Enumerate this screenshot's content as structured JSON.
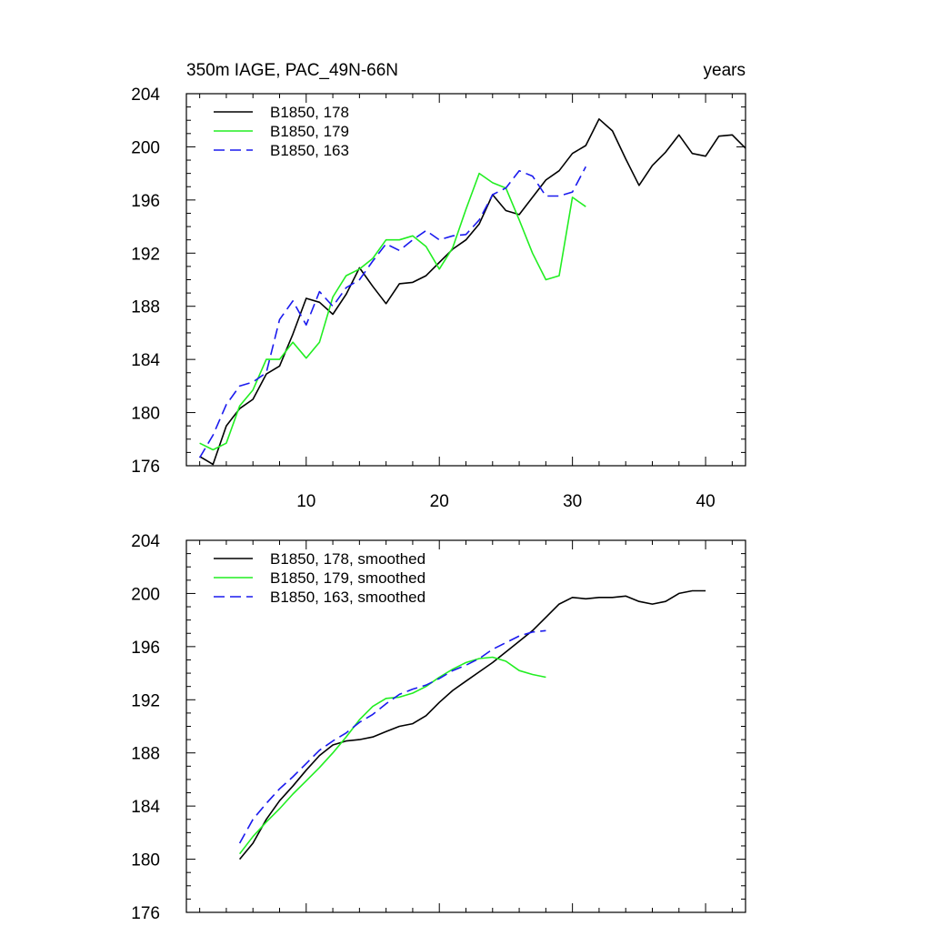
{
  "header": {
    "left_title": "350m IAGE, PAC_49N-66N",
    "right_title": "years"
  },
  "chart_data": [
    {
      "type": "line",
      "panel": "top",
      "xlim": [
        1,
        43
      ],
      "ylim": [
        176,
        204
      ],
      "x_ticks": [
        10,
        20,
        30,
        40
      ],
      "y_ticks": [
        176,
        180,
        184,
        188,
        192,
        196,
        200,
        204
      ],
      "x_tick_labels": [
        "10",
        "20",
        "30",
        "40"
      ],
      "y_tick_labels": [
        "176",
        "180",
        "184",
        "188",
        "192",
        "196",
        "200",
        "204"
      ],
      "show_x_tick_labels": true,
      "grid": false,
      "legend_position": "top-left",
      "series": [
        {
          "name": "B1850, 178",
          "color": "#000000",
          "dash": "solid",
          "x": [
            2,
            3,
            4,
            5,
            6,
            7,
            8,
            9,
            10,
            11,
            12,
            13,
            14,
            15,
            16,
            17,
            18,
            19,
            20,
            21,
            22,
            23,
            24,
            25,
            26,
            27,
            28,
            29,
            30,
            31,
            32,
            33,
            34,
            35,
            36,
            37,
            38,
            39,
            40,
            41,
            42,
            43
          ],
          "y": [
            176.7,
            176.1,
            179.0,
            180.3,
            181.0,
            182.9,
            183.5,
            185.9,
            188.6,
            188.3,
            187.4,
            188.9,
            190.9,
            189.5,
            188.2,
            189.7,
            189.8,
            190.3,
            191.3,
            192.3,
            193.0,
            194.2,
            196.4,
            195.2,
            194.9,
            196.2,
            197.5,
            198.2,
            199.5,
            200.1,
            202.1,
            201.2,
            199.1,
            197.1,
            198.6,
            199.6,
            200.9,
            199.5,
            199.3,
            200.8,
            200.9,
            199.9
          ]
        },
        {
          "name": "B1850, 179",
          "color": "#22ee22",
          "dash": "solid",
          "x": [
            2,
            3,
            4,
            5,
            6,
            7,
            8,
            9,
            10,
            11,
            12,
            13,
            14,
            15,
            16,
            17,
            18,
            19,
            20,
            21,
            22,
            23,
            24,
            25,
            26,
            27,
            28,
            29,
            30,
            31
          ],
          "y": [
            177.7,
            177.2,
            177.7,
            180.5,
            181.7,
            184.0,
            184.0,
            185.3,
            184.1,
            185.3,
            188.7,
            190.3,
            190.8,
            191.6,
            193.0,
            193.0,
            193.3,
            192.5,
            190.8,
            192.4,
            195.3,
            198.0,
            197.3,
            196.9,
            194.5,
            192.0,
            190.0,
            190.3,
            196.2,
            195.5
          ]
        },
        {
          "name": "B1850, 163",
          "color": "#1a1aee",
          "dash": "dashed",
          "x": [
            2,
            3,
            4,
            5,
            6,
            7,
            8,
            9,
            10,
            11,
            12,
            13,
            14,
            15,
            16,
            17,
            18,
            19,
            20,
            21,
            22,
            23,
            24,
            25,
            26,
            27,
            28,
            29,
            30,
            31
          ],
          "y": [
            176.6,
            178.3,
            180.6,
            182.0,
            182.3,
            183.0,
            187.0,
            188.4,
            186.6,
            189.1,
            188.0,
            189.4,
            190.0,
            191.4,
            192.7,
            192.2,
            193.0,
            193.7,
            193.0,
            193.3,
            193.4,
            194.5,
            196.4,
            196.9,
            198.2,
            197.8,
            196.3,
            196.3,
            196.6,
            198.5
          ]
        }
      ]
    },
    {
      "type": "line",
      "panel": "bottom",
      "xlim": [
        1,
        43
      ],
      "ylim": [
        176,
        204
      ],
      "x_ticks": [
        10,
        20,
        30,
        40
      ],
      "y_ticks": [
        176,
        180,
        184,
        188,
        192,
        196,
        200,
        204
      ],
      "x_tick_labels": [],
      "y_tick_labels": [
        "176",
        "180",
        "184",
        "188",
        "192",
        "196",
        "200",
        "204"
      ],
      "show_x_tick_labels": false,
      "grid": false,
      "legend_position": "top-left",
      "series": [
        {
          "name": "B1850, 178, smoothed",
          "color": "#000000",
          "dash": "solid",
          "x": [
            5,
            6,
            7,
            8,
            9,
            10,
            11,
            12,
            13,
            14,
            15,
            16,
            17,
            18,
            19,
            20,
            21,
            22,
            23,
            24,
            25,
            26,
            27,
            28,
            29,
            30,
            31,
            32,
            33,
            34,
            35,
            36,
            37,
            38,
            39,
            40
          ],
          "y": [
            180.0,
            181.2,
            183.0,
            184.4,
            185.5,
            186.7,
            187.8,
            188.6,
            188.9,
            189.0,
            189.2,
            189.6,
            190.0,
            190.2,
            190.8,
            191.8,
            192.7,
            193.4,
            194.1,
            194.8,
            195.6,
            196.4,
            197.2,
            198.2,
            199.2,
            199.7,
            199.6,
            199.7,
            199.7,
            199.8,
            199.4,
            199.2,
            199.4,
            200.0,
            200.2,
            200.2
          ]
        },
        {
          "name": "B1850, 179, smoothed",
          "color": "#22ee22",
          "dash": "solid",
          "x": [
            5,
            6,
            7,
            8,
            9,
            10,
            11,
            12,
            13,
            14,
            15,
            16,
            17,
            18,
            19,
            20,
            21,
            22,
            23,
            24,
            25,
            26,
            27,
            28
          ],
          "y": [
            180.4,
            181.7,
            182.8,
            183.8,
            184.9,
            185.9,
            186.9,
            188.0,
            189.2,
            190.5,
            191.5,
            192.1,
            192.2,
            192.5,
            193.0,
            193.7,
            194.3,
            194.8,
            195.1,
            195.2,
            194.9,
            194.2,
            193.9,
            193.7
          ]
        },
        {
          "name": "B1850, 163, smoothed",
          "color": "#1a1aee",
          "dash": "dashed",
          "x": [
            5,
            6,
            7,
            8,
            9,
            10,
            11,
            12,
            13,
            14,
            15,
            16,
            17,
            18,
            19,
            20,
            21,
            22,
            23,
            24,
            25,
            26,
            27,
            28
          ],
          "y": [
            181.2,
            183.0,
            184.2,
            185.3,
            186.2,
            187.2,
            188.2,
            188.9,
            189.5,
            190.3,
            190.9,
            191.7,
            192.4,
            192.8,
            193.1,
            193.6,
            194.2,
            194.6,
            195.1,
            195.8,
            196.3,
            196.8,
            197.1,
            197.2
          ]
        }
      ]
    }
  ]
}
